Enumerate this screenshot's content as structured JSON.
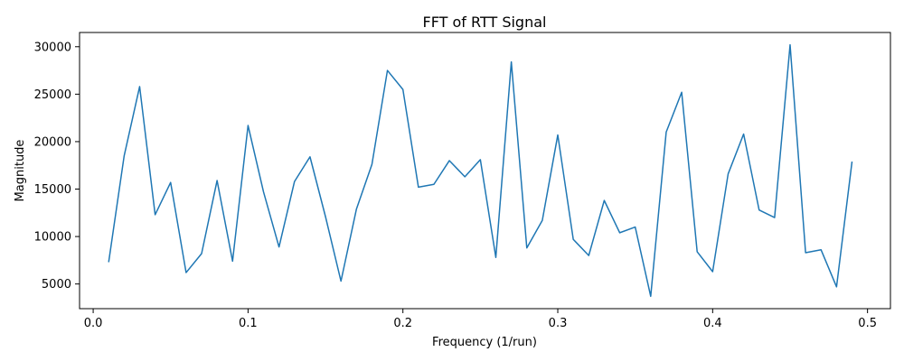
{
  "chart_data": {
    "type": "line",
    "title": "FFT of RTT Signal",
    "xlabel": "Frequency (1/run)",
    "ylabel": "Magnitude",
    "xlim": [
      -0.0088,
      0.5148
    ],
    "ylim": [
      2400,
      31500
    ],
    "xticks": [
      0.0,
      0.1,
      0.2,
      0.3,
      0.4,
      0.5
    ],
    "xtick_labels": [
      "0.0",
      "0.1",
      "0.2",
      "0.3",
      "0.4",
      "0.5"
    ],
    "yticks": [
      5000,
      10000,
      15000,
      20000,
      25000,
      30000
    ],
    "ytick_labels": [
      "5000",
      "10000",
      "15000",
      "20000",
      "25000",
      "30000"
    ],
    "grid": false,
    "series": [
      {
        "color": "#1f77b4",
        "x": [
          0.01,
          0.02,
          0.03,
          0.04,
          0.05,
          0.06,
          0.07,
          0.08,
          0.09,
          0.1,
          0.11,
          0.12,
          0.13,
          0.14,
          0.15,
          0.16,
          0.17,
          0.18,
          0.19,
          0.2,
          0.21,
          0.22,
          0.23,
          0.24,
          0.25,
          0.26,
          0.27,
          0.28,
          0.29,
          0.3,
          0.31,
          0.32,
          0.33,
          0.34,
          0.35,
          0.36,
          0.37,
          0.38,
          0.39,
          0.4,
          0.41,
          0.42,
          0.43,
          0.44,
          0.45,
          0.46,
          0.47,
          0.48,
          0.49
        ],
        "y": [
          7300,
          18500,
          25800,
          12300,
          15700,
          6200,
          8200,
          15900,
          7400,
          21700,
          14700,
          8900,
          15800,
          18400,
          12100,
          5300,
          12900,
          17600,
          27500,
          25500,
          15200,
          15500,
          18000,
          16300,
          18100,
          7800,
          28400,
          8800,
          11700,
          20700,
          9700,
          8000,
          13800,
          10400,
          11000,
          3700,
          21000,
          25200,
          8400,
          6300,
          16600,
          20800,
          12800,
          12000,
          30200,
          8300,
          8600,
          4700,
          17900
        ]
      }
    ]
  }
}
